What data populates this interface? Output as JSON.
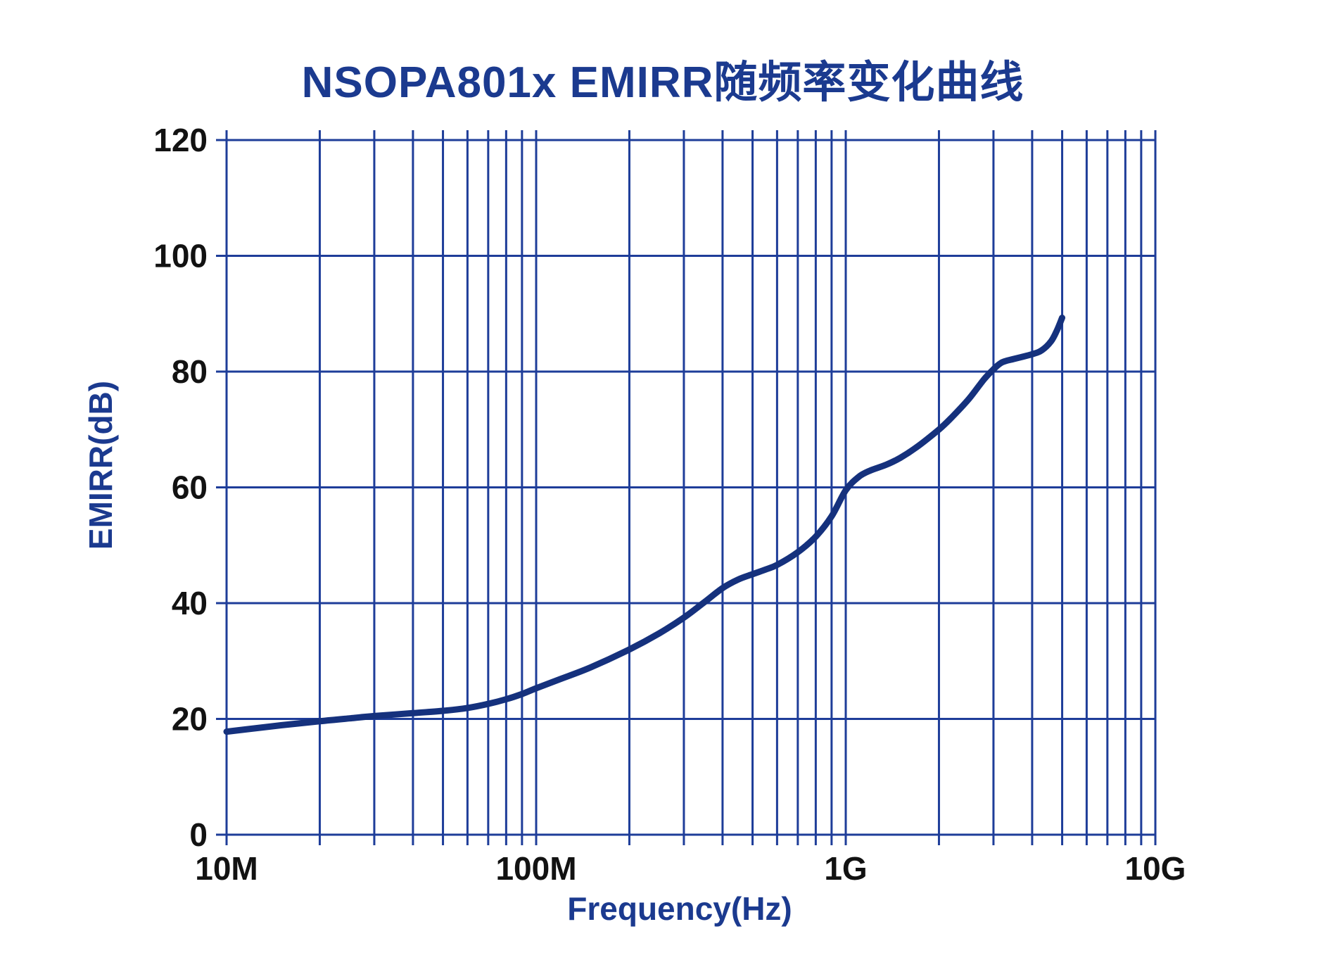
{
  "page": {
    "background": "#ffffff"
  },
  "style": {
    "title_color": "#1b3a8f",
    "axis_label_color": "#1b3a8f",
    "tick_label_color": "#121212",
    "grid_color": "#1e3d99",
    "curve_color": "#15317d",
    "background": "#ffffff"
  },
  "chart_data": {
    "type": "line",
    "title": "NSOPA801x EMIRR随频率变化曲线",
    "xlabel": "Frequency(Hz)",
    "ylabel": "EMIRR(dB)",
    "x_scale": "log",
    "xlim": [
      10000000.0,
      10000000000.0
    ],
    "ylim": [
      0,
      120
    ],
    "y_ticks": [
      0,
      20,
      40,
      60,
      80,
      100,
      120
    ],
    "x_ticks": [
      {
        "value": 10000000.0,
        "label": "10M"
      },
      {
        "value": 100000000.0,
        "label": "100M"
      },
      {
        "value": 1000000000.0,
        "label": "1G"
      },
      {
        "value": 10000000000.0,
        "label": "10G"
      }
    ],
    "grid": {
      "minor_log_lines": true,
      "major_and_minor_same_style": true
    },
    "legend_position": "none",
    "series": [
      {
        "name": "EMIRR",
        "points": [
          [
            10000000.0,
            17.8
          ],
          [
            12000000.0,
            18.3
          ],
          [
            15000000.0,
            18.9
          ],
          [
            20000000.0,
            19.6
          ],
          [
            25000000.0,
            20.1
          ],
          [
            30000000.0,
            20.5
          ],
          [
            40000000.0,
            21.0
          ],
          [
            50000000.0,
            21.4
          ],
          [
            60000000.0,
            21.9
          ],
          [
            70000000.0,
            22.6
          ],
          [
            80000000.0,
            23.4
          ],
          [
            90000000.0,
            24.3
          ],
          [
            100000000.0,
            25.3
          ],
          [
            120000000.0,
            26.9
          ],
          [
            150000000.0,
            28.9
          ],
          [
            200000000.0,
            32.0
          ],
          [
            250000000.0,
            34.8
          ],
          [
            300000000.0,
            37.5
          ],
          [
            350000000.0,
            40.2
          ],
          [
            400000000.0,
            42.6
          ],
          [
            450000000.0,
            44.1
          ],
          [
            500000000.0,
            45.0
          ],
          [
            550000000.0,
            45.8
          ],
          [
            600000000.0,
            46.6
          ],
          [
            700000000.0,
            48.8
          ],
          [
            800000000.0,
            51.5
          ],
          [
            900000000.0,
            55.0
          ],
          [
            1000000000.0,
            59.5
          ],
          [
            1100000000.0,
            61.8
          ],
          [
            1200000000.0,
            62.9
          ],
          [
            1350000000.0,
            63.9
          ],
          [
            1500000000.0,
            65.1
          ],
          [
            1700000000.0,
            67.0
          ],
          [
            2000000000.0,
            70.0
          ],
          [
            2200000000.0,
            72.1
          ],
          [
            2500000000.0,
            75.3
          ],
          [
            2800000000.0,
            78.7
          ],
          [
            3000000000.0,
            80.4
          ],
          [
            3200000000.0,
            81.6
          ],
          [
            3500000000.0,
            82.2
          ],
          [
            4000000000.0,
            83.0
          ],
          [
            4300000000.0,
            83.7
          ],
          [
            4600000000.0,
            85.2
          ],
          [
            4800000000.0,
            87.0
          ],
          [
            5000000000.0,
            89.3
          ]
        ]
      }
    ]
  }
}
